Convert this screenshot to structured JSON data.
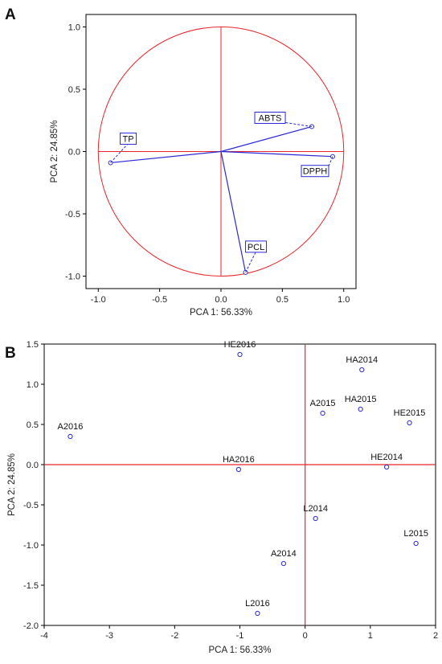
{
  "chart_data": [
    {
      "panel": "A",
      "type": "scatter",
      "xlabel": "PCA 1: 56.33%",
      "ylabel": "PCA 2: 24.85%",
      "xlim": [
        -1.1,
        1.1
      ],
      "ylim": [
        -1.1,
        1.1
      ],
      "xticks": [
        "-1.0",
        "-0.5",
        "0.0",
        "0.5",
        "1.0"
      ],
      "yticks": [
        "-1.0",
        "-0.5",
        "0.0",
        "0.5",
        "1.0"
      ],
      "unit_circle": true,
      "grid": false,
      "points": [
        {
          "label": "ABTS",
          "x": 0.74,
          "y": 0.2
        },
        {
          "label": "TP",
          "x": -0.9,
          "y": -0.09
        },
        {
          "label": "DPPH",
          "x": 0.91,
          "y": -0.04
        },
        {
          "label": "PCL",
          "x": 0.2,
          "y": -0.97
        }
      ],
      "colors": {
        "axes_lines": "#e8252a",
        "vectors": "#2a2ad6",
        "frame": "#000000"
      }
    },
    {
      "panel": "B",
      "type": "scatter",
      "xlabel": "PCA 1: 56.33%",
      "ylabel": "PCA 2: 24.85%",
      "xlim": [
        -4,
        2
      ],
      "ylim": [
        -2.0,
        1.5
      ],
      "xticks": [
        "-4",
        "-3",
        "-2",
        "-1",
        "0",
        "1",
        "2"
      ],
      "yticks": [
        "-2.0",
        "-1.5",
        "-1.0",
        "-0.5",
        "0.0",
        "0.5",
        "1.0",
        "1.5"
      ],
      "grid": false,
      "points": [
        {
          "label": "HE2016",
          "x": -1.0,
          "y": 1.37
        },
        {
          "label": "HA2014",
          "x": 0.87,
          "y": 1.18
        },
        {
          "label": "A2015",
          "x": 0.27,
          "y": 0.64
        },
        {
          "label": "HA2015",
          "x": 0.85,
          "y": 0.69
        },
        {
          "label": "HE2015",
          "x": 1.6,
          "y": 0.52
        },
        {
          "label": "A2016",
          "x": -3.6,
          "y": 0.35
        },
        {
          "label": "HA2016",
          "x": -1.02,
          "y": -0.06
        },
        {
          "label": "HE2014",
          "x": 1.25,
          "y": -0.03
        },
        {
          "label": "L2014",
          "x": 0.16,
          "y": -0.67
        },
        {
          "label": "L2015",
          "x": 1.7,
          "y": -0.98
        },
        {
          "label": "A2014",
          "x": -0.33,
          "y": -1.23
        },
        {
          "label": "L2016",
          "x": -0.73,
          "y": -1.85
        }
      ],
      "colors": {
        "axes_lines": "#e8252a",
        "points": "#2a2ad6",
        "frame": "#000000"
      }
    }
  ],
  "panels": {
    "a": {
      "label": "A"
    },
    "b": {
      "label": "B"
    }
  }
}
